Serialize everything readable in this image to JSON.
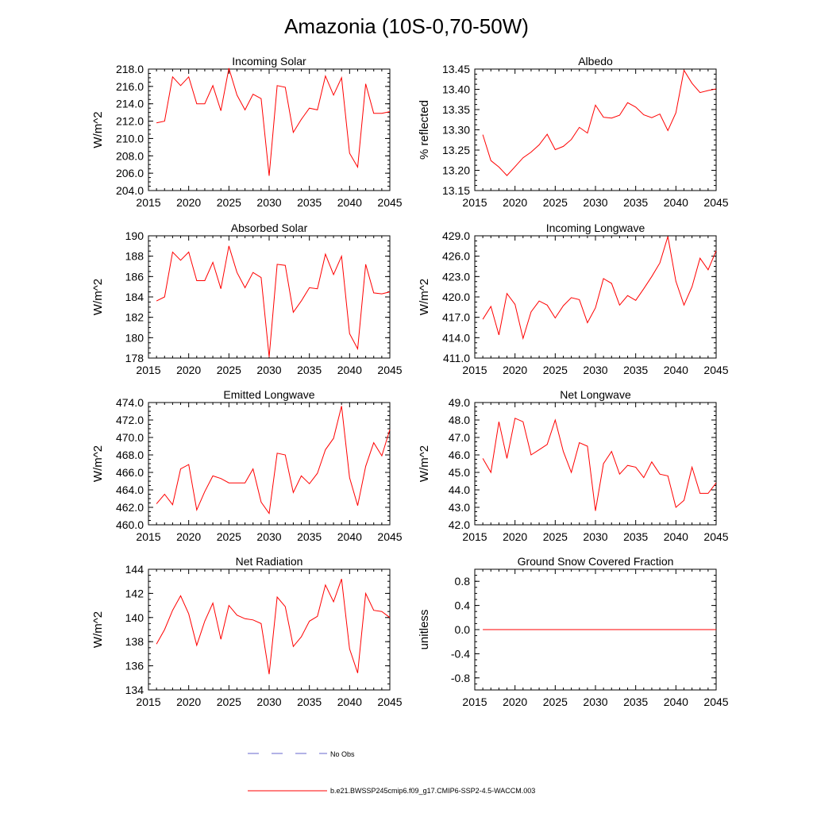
{
  "title": "Amazonia (10S-0,70-50W)",
  "series_color": "#ff0000",
  "obs_color": "#6666cc",
  "legend": {
    "obs_label": "No Obs",
    "model_label": "b.e21.BWSSP245cmip6.f09_g17.CMIP6-SSP2-4.5-WACCM.003"
  },
  "chart_data": [
    {
      "type": "line",
      "title": "Incoming Solar",
      "xlabel": "",
      "ylabel": "W/m^2",
      "xlim": [
        2015,
        2045
      ],
      "ylim": [
        204,
        218
      ],
      "xticks": [
        2015,
        2020,
        2025,
        2030,
        2035,
        2040,
        2045
      ],
      "yticks": [
        204,
        206,
        208,
        210,
        212,
        214,
        216,
        218
      ],
      "ytick_labels": [
        "204.0",
        "206.0",
        "208.0",
        "210.0",
        "212.0",
        "214.0",
        "216.0",
        "218.0"
      ],
      "x": [
        2016,
        2017,
        2018,
        2019,
        2020,
        2021,
        2022,
        2023,
        2024,
        2025,
        2026,
        2027,
        2028,
        2029,
        2030,
        2031,
        2032,
        2033,
        2034,
        2035,
        2036,
        2037,
        2038,
        2039,
        2040,
        2041,
        2042,
        2043,
        2044,
        2045
      ],
      "values": [
        211.8,
        212.0,
        217.1,
        216.1,
        217.1,
        214.0,
        214.0,
        216.1,
        213.2,
        218.1,
        215.0,
        213.3,
        215.1,
        214.6,
        205.7,
        216.1,
        215.9,
        210.7,
        212.2,
        213.5,
        213.3,
        217.2,
        215.0,
        217.0,
        208.3,
        206.7,
        216.3,
        212.9,
        212.9,
        213.1
      ]
    },
    {
      "type": "line",
      "title": "Albedo",
      "xlabel": "",
      "ylabel": "% reflected",
      "xlim": [
        2015,
        2045
      ],
      "ylim": [
        13.15,
        13.45
      ],
      "xticks": [
        2015,
        2020,
        2025,
        2030,
        2035,
        2040,
        2045
      ],
      "yticks": [
        13.15,
        13.2,
        13.25,
        13.3,
        13.35,
        13.4,
        13.45
      ],
      "ytick_labels": [
        "13.15",
        "13.20",
        "13.25",
        "13.30",
        "13.35",
        "13.40",
        "13.45"
      ],
      "x": [
        2016,
        2017,
        2018,
        2019,
        2020,
        2021,
        2022,
        2023,
        2024,
        2025,
        2026,
        2027,
        2028,
        2029,
        2030,
        2031,
        2032,
        2033,
        2034,
        2035,
        2036,
        2037,
        2038,
        2039,
        2040,
        2041,
        2042,
        2043,
        2044,
        2045
      ],
      "values": [
        13.288,
        13.224,
        13.208,
        13.187,
        13.209,
        13.231,
        13.245,
        13.263,
        13.289,
        13.251,
        13.259,
        13.276,
        13.306,
        13.292,
        13.361,
        13.331,
        13.329,
        13.336,
        13.367,
        13.356,
        13.337,
        13.33,
        13.339,
        13.298,
        13.342,
        13.447,
        13.415,
        13.392,
        13.397,
        13.401
      ]
    },
    {
      "type": "line",
      "title": "Absorbed Solar",
      "xlabel": "",
      "ylabel": "W/m^2",
      "xlim": [
        2015,
        2045
      ],
      "ylim": [
        178,
        190
      ],
      "xticks": [
        2015,
        2020,
        2025,
        2030,
        2035,
        2040,
        2045
      ],
      "yticks": [
        178,
        180,
        182,
        184,
        186,
        188,
        190
      ],
      "ytick_labels": [
        "178",
        "180",
        "182",
        "184",
        "186",
        "188",
        "190"
      ],
      "x": [
        2016,
        2017,
        2018,
        2019,
        2020,
        2021,
        2022,
        2023,
        2024,
        2025,
        2026,
        2027,
        2028,
        2029,
        2030,
        2031,
        2032,
        2033,
        2034,
        2035,
        2036,
        2037,
        2038,
        2039,
        2040,
        2041,
        2042,
        2043,
        2044,
        2045
      ],
      "values": [
        183.6,
        184.0,
        188.4,
        187.6,
        188.4,
        185.6,
        185.6,
        187.4,
        184.8,
        189.0,
        186.4,
        184.9,
        186.4,
        185.9,
        178.1,
        187.2,
        187.1,
        182.5,
        183.6,
        184.9,
        184.8,
        188.2,
        186.2,
        188.0,
        180.4,
        178.9,
        187.2,
        184.4,
        184.3,
        184.5
      ]
    },
    {
      "type": "line",
      "title": "Incoming Longwave",
      "xlabel": "",
      "ylabel": "W/m^2",
      "xlim": [
        2015,
        2045
      ],
      "ylim": [
        411,
        429
      ],
      "xticks": [
        2015,
        2020,
        2025,
        2030,
        2035,
        2040,
        2045
      ],
      "yticks": [
        411,
        414,
        417,
        420,
        423,
        426,
        429
      ],
      "ytick_labels": [
        "411.0",
        "414.0",
        "417.0",
        "420.0",
        "423.0",
        "426.0",
        "429.0"
      ],
      "x": [
        2016,
        2017,
        2018,
        2019,
        2020,
        2021,
        2022,
        2023,
        2024,
        2025,
        2026,
        2027,
        2028,
        2029,
        2030,
        2031,
        2032,
        2033,
        2034,
        2035,
        2036,
        2037,
        2038,
        2039,
        2040,
        2041,
        2042,
        2043,
        2044,
        2045
      ],
      "values": [
        416.7,
        418.6,
        414.4,
        420.5,
        418.9,
        413.9,
        417.8,
        419.4,
        418.8,
        416.9,
        418.7,
        419.9,
        419.6,
        416.2,
        418.4,
        422.7,
        422.0,
        418.8,
        420.2,
        419.5,
        421.2,
        423.0,
        425.0,
        428.9,
        422.3,
        418.8,
        421.5,
        425.7,
        424.0,
        426.8
      ]
    },
    {
      "type": "line",
      "title": "Emitted Longwave",
      "xlabel": "",
      "ylabel": "W/m^2",
      "xlim": [
        2015,
        2045
      ],
      "ylim": [
        460,
        474
      ],
      "xticks": [
        2015,
        2020,
        2025,
        2030,
        2035,
        2040,
        2045
      ],
      "yticks": [
        460,
        462,
        464,
        466,
        468,
        470,
        472,
        474
      ],
      "ytick_labels": [
        "460.0",
        "462.0",
        "464.0",
        "466.0",
        "468.0",
        "470.0",
        "472.0",
        "474.0"
      ],
      "x": [
        2016,
        2017,
        2018,
        2019,
        2020,
        2021,
        2022,
        2023,
        2024,
        2025,
        2026,
        2027,
        2028,
        2029,
        2030,
        2031,
        2032,
        2033,
        2034,
        2035,
        2036,
        2037,
        2038,
        2039,
        2040,
        2041,
        2042,
        2043,
        2044,
        2045
      ],
      "values": [
        462.4,
        463.5,
        462.3,
        466.4,
        466.9,
        461.7,
        463.8,
        465.6,
        465.3,
        464.8,
        464.8,
        464.8,
        466.4,
        462.6,
        461.3,
        468.2,
        468.0,
        463.7,
        465.6,
        464.7,
        465.9,
        468.6,
        469.9,
        473.6,
        465.4,
        462.2,
        466.7,
        469.4,
        467.9,
        470.9
      ]
    },
    {
      "type": "line",
      "title": "Net Longwave",
      "xlabel": "",
      "ylabel": "W/m^2",
      "xlim": [
        2015,
        2045
      ],
      "ylim": [
        42,
        49
      ],
      "xticks": [
        2015,
        2020,
        2025,
        2030,
        2035,
        2040,
        2045
      ],
      "yticks": [
        42,
        43,
        44,
        45,
        46,
        47,
        48,
        49
      ],
      "ytick_labels": [
        "42.0",
        "43.0",
        "44.0",
        "45.0",
        "46.0",
        "47.0",
        "48.0",
        "49.0"
      ],
      "x": [
        2016,
        2017,
        2018,
        2019,
        2020,
        2021,
        2022,
        2023,
        2024,
        2025,
        2026,
        2027,
        2028,
        2029,
        2030,
        2031,
        2032,
        2033,
        2034,
        2035,
        2036,
        2037,
        2038,
        2039,
        2040,
        2041,
        2042,
        2043,
        2044,
        2045
      ],
      "values": [
        45.8,
        45.0,
        47.9,
        45.8,
        48.1,
        47.9,
        46.0,
        46.3,
        46.6,
        48.0,
        46.2,
        45.0,
        46.7,
        46.5,
        42.8,
        45.5,
        46.2,
        44.9,
        45.4,
        45.3,
        44.7,
        45.6,
        44.9,
        44.8,
        43.0,
        43.4,
        45.3,
        43.8,
        43.8,
        44.4
      ]
    },
    {
      "type": "line",
      "title": "Net Radiation",
      "xlabel": "",
      "ylabel": "W/m^2",
      "xlim": [
        2015,
        2045
      ],
      "ylim": [
        134,
        144
      ],
      "xticks": [
        2015,
        2020,
        2025,
        2030,
        2035,
        2040,
        2045
      ],
      "yticks": [
        134,
        136,
        138,
        140,
        142,
        144
      ],
      "ytick_labels": [
        "134",
        "136",
        "138",
        "140",
        "142",
        "144"
      ],
      "x": [
        2016,
        2017,
        2018,
        2019,
        2020,
        2021,
        2022,
        2023,
        2024,
        2025,
        2026,
        2027,
        2028,
        2029,
        2030,
        2031,
        2032,
        2033,
        2034,
        2035,
        2036,
        2037,
        2038,
        2039,
        2040,
        2041,
        2042,
        2043,
        2044,
        2045
      ],
      "values": [
        137.8,
        139.0,
        140.6,
        141.8,
        140.3,
        137.7,
        139.7,
        141.2,
        138.2,
        141.0,
        140.2,
        139.9,
        139.8,
        139.5,
        135.3,
        141.7,
        140.9,
        137.6,
        138.4,
        139.7,
        140.1,
        142.7,
        141.3,
        143.2,
        137.4,
        135.4,
        142.0,
        140.6,
        140.5,
        140.0
      ]
    },
    {
      "type": "line",
      "title": "Ground Snow Covered Fraction",
      "xlabel": "",
      "ylabel": "unitless",
      "xlim": [
        2015,
        2045
      ],
      "ylim": [
        -1.0,
        1.0
      ],
      "xticks": [
        2015,
        2020,
        2025,
        2030,
        2035,
        2040,
        2045
      ],
      "yticks": [
        -0.8,
        -0.4,
        0.0,
        0.4,
        0.8
      ],
      "ytick_labels": [
        "-0.8",
        "-0.4",
        "0.0",
        "0.4",
        "0.8"
      ],
      "x": [
        2016,
        2017,
        2018,
        2019,
        2020,
        2021,
        2022,
        2023,
        2024,
        2025,
        2026,
        2027,
        2028,
        2029,
        2030,
        2031,
        2032,
        2033,
        2034,
        2035,
        2036,
        2037,
        2038,
        2039,
        2040,
        2041,
        2042,
        2043,
        2044,
        2045
      ],
      "values": [
        0,
        0,
        0,
        0,
        0,
        0,
        0,
        0,
        0,
        0,
        0,
        0,
        0,
        0,
        0,
        0,
        0,
        0,
        0,
        0,
        0,
        0,
        0,
        0,
        0,
        0,
        0,
        0,
        0,
        0
      ]
    }
  ]
}
